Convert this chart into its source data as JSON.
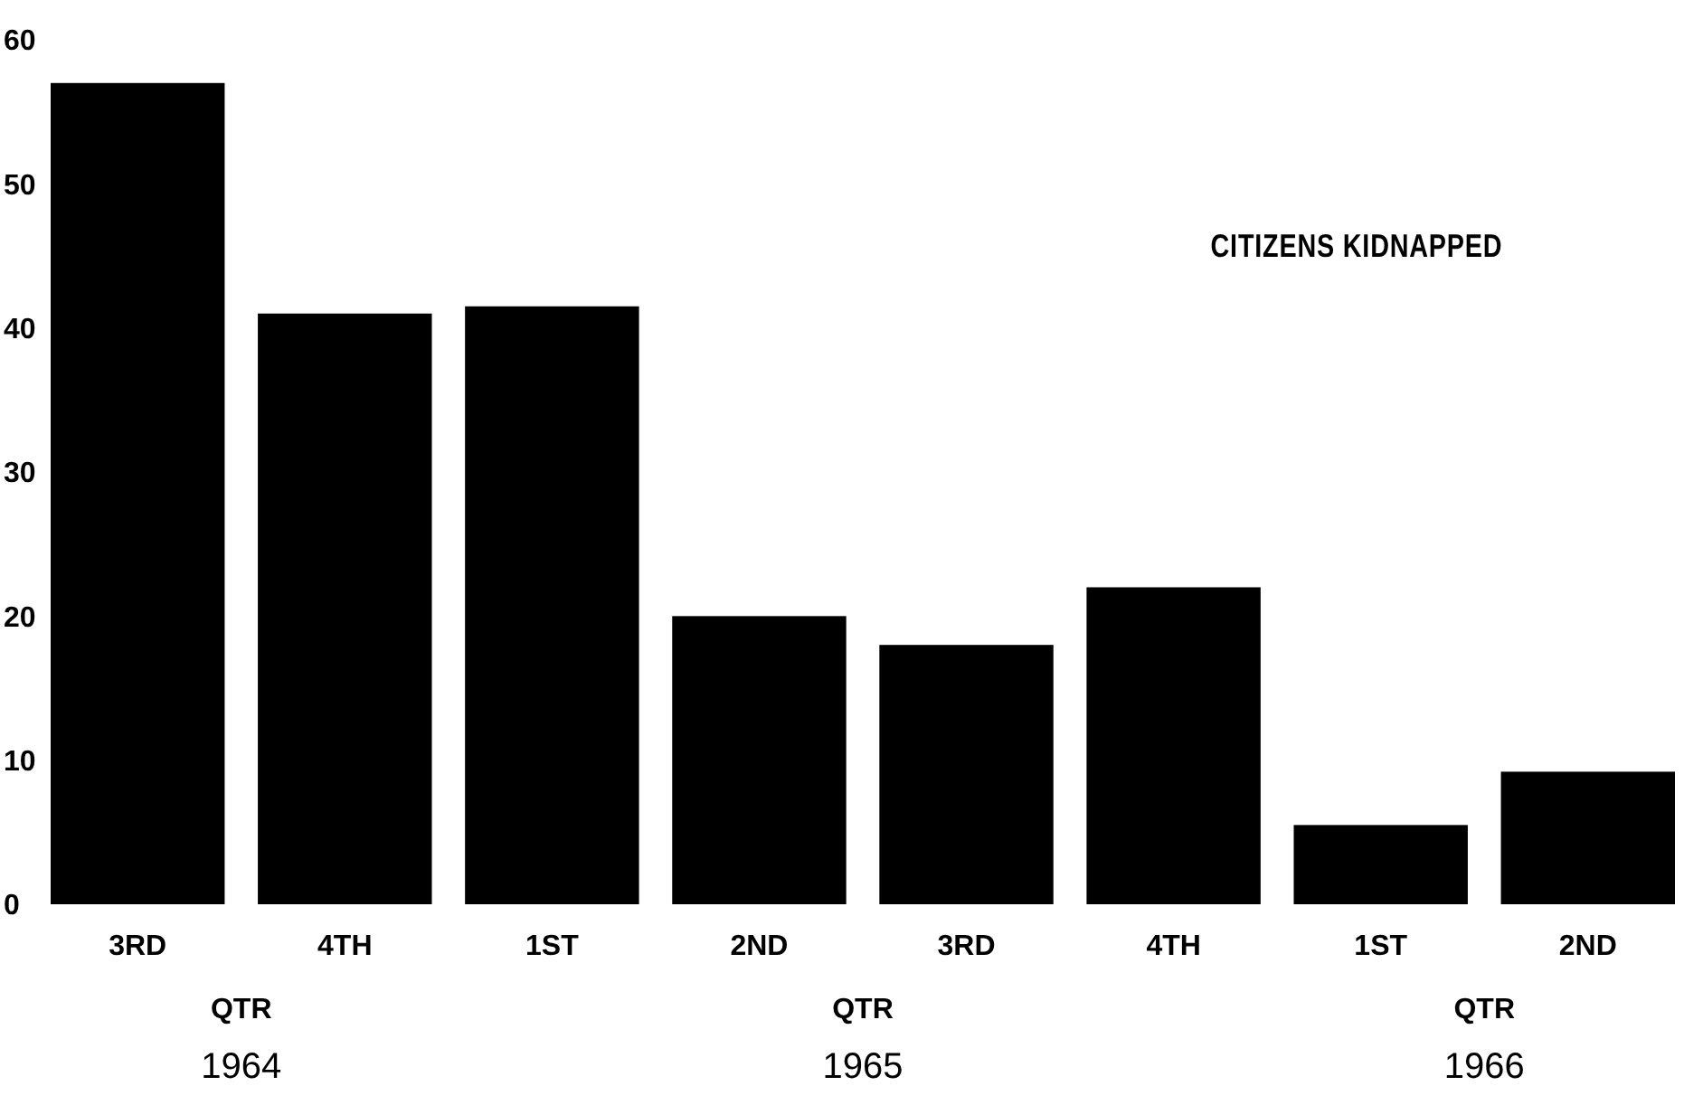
{
  "chart_data": {
    "type": "bar",
    "title": "CITIZENS KIDNAPPED",
    "categories": [
      "3RD",
      "4TH",
      "1ST",
      "2ND",
      "3RD",
      "4TH",
      "1ST",
      "2ND"
    ],
    "values": [
      57,
      41,
      41.5,
      20,
      18,
      22,
      5.5,
      9.2
    ],
    "color": "#000000",
    "ylim": [
      0,
      60
    ],
    "yticks": [
      0,
      10,
      20,
      30,
      40,
      50,
      60
    ],
    "grid": false,
    "annotations": [
      "QTR",
      "1964",
      "QTR",
      "1965",
      "QTR",
      "1966"
    ]
  }
}
